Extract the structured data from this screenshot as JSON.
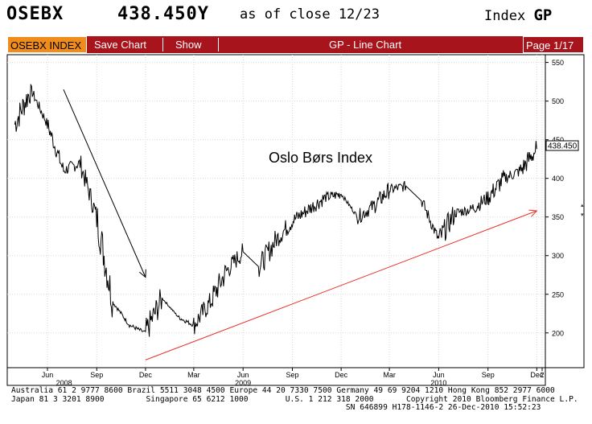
{
  "header": {
    "ticker": "OSEBX",
    "price": "438.450Y",
    "as_of": "as of close 12/23",
    "index_label": "Index",
    "index_code": "GP"
  },
  "toolbar": {
    "ticker_tab": "OSEBX INDEX",
    "save_chart": "Save Chart",
    "show": "Show",
    "chart_title": "GP - Line Chart",
    "page": "Page 1/17"
  },
  "colors": {
    "toolbar_bg": "#a8141c",
    "ticker_tab_bg": "#f08c1c",
    "price_line": "#000000",
    "trend_line": "#e8322a",
    "grid": "#d8d8d8"
  },
  "chart_data": {
    "type": "line",
    "title": "Oslo Børs Index",
    "last_value_label": "438.450",
    "ylim": [
      155,
      560
    ],
    "y_ticks": [
      200,
      250,
      300,
      350,
      400,
      450,
      500,
      550
    ],
    "x_tick_labels": [
      "Jun",
      "Sep",
      "Dec",
      "Mar",
      "Jun",
      "Sep",
      "Dec",
      "Mar",
      "Jun",
      "Sep",
      "Dec",
      "2"
    ],
    "year_labels": [
      "2008",
      "2009",
      "2010"
    ],
    "grid": true,
    "series": [
      {
        "x": [
          "2008-04",
          "2008-05",
          "2008-06",
          "2008-07",
          "2008-08",
          "2008-09",
          "2008-10",
          "2008-11",
          "2008-12",
          "2009-01",
          "2009-02",
          "2009-03",
          "2009-04",
          "2009-05",
          "2009-06",
          "2009-07",
          "2009-08",
          "2009-09",
          "2009-10",
          "2009-11",
          "2009-12",
          "2010-01",
          "2010-02",
          "2010-03",
          "2010-04",
          "2010-05",
          "2010-06",
          "2010-07",
          "2010-08",
          "2010-09",
          "2010-10",
          "2010-11",
          "2010-12"
        ],
        "values": [
          470,
          515,
          470,
          410,
          420,
          350,
          240,
          210,
          200,
          245,
          220,
          210,
          240,
          280,
          305,
          285,
          320,
          345,
          360,
          375,
          380,
          350,
          365,
          385,
          390,
          370,
          320,
          355,
          360,
          375,
          400,
          410,
          438
        ]
      }
    ],
    "annotations": [
      {
        "type": "arrow",
        "from": [
          "2008-07",
          515
        ],
        "to": [
          "2008-12",
          272
        ]
      },
      {
        "type": "arrow",
        "from": [
          "2008-12",
          165
        ],
        "to": [
          "2010-12",
          358
        ]
      }
    ]
  },
  "footer": {
    "line1": "Australia 61 2 9777 8600 Brazil 5511 3048 4500 Europe 44 20 7330 7500 Germany 49 69 9204 1210 Hong Kong 852 2977 6000",
    "line2": "Japan 81 3 3201 8900         Singapore 65 6212 1000        U.S. 1 212 318 2000       Copyright 2010 Bloomberg Finance L.P.",
    "line3": "                                                                        SN 646899 H178-1146-2 26-Dec-2010 15:52:23"
  }
}
